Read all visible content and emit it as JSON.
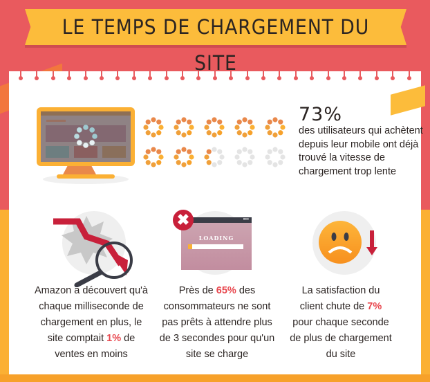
{
  "header": {
    "title": "LE TEMPS DE CHARGEMENT DU SITE"
  },
  "colors": {
    "red_bg": "#e95a5e",
    "orange_bg": "#fbb034",
    "highlight": "#e8474e",
    "spinner_on": "#f0a03a",
    "spinner_off": "#e4e4e4"
  },
  "stat_mobile": {
    "value": "73%",
    "percent": 73,
    "text": "des utilisateurs qui achètent depuis leur mobile ont déjà trouvé la vitesse de chargement trop lente",
    "spinner_count": 10
  },
  "facts": [
    {
      "icon": "chart-down-magnifier-icon",
      "before": "Amazon a découvert qu'à chaque milliseconde de chargement en plus, le site comptait ",
      "highlight": "1%",
      "after": " de ventes en moins"
    },
    {
      "icon": "loading-window-error-icon",
      "loading_label": "LOADING",
      "before": "Près de ",
      "highlight": "65%",
      "after": " des consommateurs ne sont pas prêts à attendre plus de 3 secondes pour qu'un site se charge"
    },
    {
      "icon": "sad-face-down-arrow-icon",
      "before": "La satisfaction du client chute de ",
      "highlight": "7%",
      "after": " pour chaque seconde de plus de chargement du site"
    }
  ]
}
